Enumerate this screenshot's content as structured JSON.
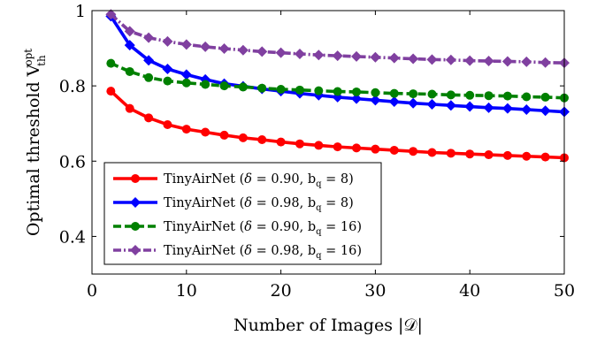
{
  "chart_data": {
    "type": "line",
    "xlabel": "Number of Images |𝒟|",
    "ylabel": "Optimal threshold V",
    "ylabel_sub": "th",
    "ylabel_sup": "opt",
    "xlim": [
      0,
      50
    ],
    "ylim": [
      0.3,
      1.0
    ],
    "xticks": [
      0,
      10,
      20,
      30,
      40,
      50
    ],
    "yticks": [
      0.4,
      0.6,
      0.8,
      1.0
    ],
    "ytick_labels": [
      "0.4",
      "0.6",
      "0.8",
      "1"
    ],
    "grid": false,
    "legend_position": "lower-left",
    "x": [
      2,
      4,
      6,
      8,
      10,
      12,
      14,
      16,
      18,
      20,
      22,
      24,
      26,
      28,
      30,
      32,
      34,
      36,
      38,
      40,
      42,
      44,
      46,
      48,
      50
    ],
    "series": [
      {
        "name": "TinyAirNet (δ = 0.90, bq = 8)",
        "legend": {
          "prefix": "TinyAirNet (",
          "sym": "δ",
          "mid": " = 0.90, b",
          "sub": "q",
          "suffix": " = 8)"
        },
        "color": "#ff0000",
        "marker": "circle",
        "dash": "solid",
        "values": [
          0.786,
          0.74,
          0.715,
          0.697,
          0.685,
          0.677,
          0.669,
          0.662,
          0.657,
          0.651,
          0.646,
          0.642,
          0.638,
          0.635,
          0.632,
          0.629,
          0.626,
          0.623,
          0.621,
          0.619,
          0.617,
          0.615,
          0.613,
          0.611,
          0.609
        ]
      },
      {
        "name": "TinyAirNet (δ = 0.98, bq = 8)",
        "legend": {
          "prefix": "TinyAirNet (",
          "sym": "δ",
          "mid": " = 0.98, b",
          "sub": "q",
          "suffix": " = 8)"
        },
        "color": "#0000ff",
        "marker": "diamond",
        "dash": "solid",
        "values": [
          0.985,
          0.908,
          0.868,
          0.845,
          0.83,
          0.817,
          0.806,
          0.799,
          0.792,
          0.786,
          0.78,
          0.775,
          0.77,
          0.766,
          0.762,
          0.758,
          0.754,
          0.751,
          0.748,
          0.745,
          0.742,
          0.74,
          0.737,
          0.734,
          0.731
        ]
      },
      {
        "name": "TinyAirNet (δ = 0.90, bq = 16)",
        "legend": {
          "prefix": "TinyAirNet (",
          "sym": "δ",
          "mid": " = 0.90, b",
          "sub": "q",
          "suffix": " = 16)"
        },
        "color": "#008000",
        "marker": "circle",
        "dash": "dashed",
        "values": [
          0.86,
          0.838,
          0.822,
          0.813,
          0.808,
          0.804,
          0.8,
          0.797,
          0.794,
          0.791,
          0.789,
          0.787,
          0.785,
          0.784,
          0.782,
          0.78,
          0.779,
          0.778,
          0.776,
          0.775,
          0.774,
          0.773,
          0.771,
          0.77,
          0.768
        ]
      },
      {
        "name": "TinyAirNet (δ = 0.98, bq = 16)",
        "legend": {
          "prefix": "TinyAirNet (",
          "sym": "δ",
          "mid": " = 0.98, b",
          "sub": "q",
          "suffix": " = 16)"
        },
        "color": "#8040a0",
        "marker": "diamond",
        "dash": "dashdot",
        "values": [
          0.99,
          0.945,
          0.928,
          0.918,
          0.91,
          0.904,
          0.899,
          0.895,
          0.891,
          0.888,
          0.885,
          0.882,
          0.88,
          0.878,
          0.876,
          0.874,
          0.872,
          0.87,
          0.869,
          0.867,
          0.866,
          0.865,
          0.864,
          0.862,
          0.861
        ]
      }
    ]
  }
}
